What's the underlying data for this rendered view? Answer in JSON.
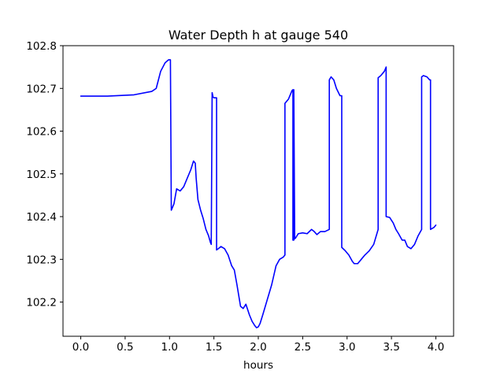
{
  "chart_data": {
    "type": "line",
    "title": "Water Depth h at gauge 540",
    "xlabel": "hours",
    "ylabel": "",
    "xlim": [
      -0.2,
      4.2
    ],
    "ylim": [
      102.12,
      102.8
    ],
    "grid": false,
    "legend": "none",
    "colors": {
      "line": "#0000ff",
      "axes": "#000000",
      "background": "#ffffff"
    },
    "xticks": [
      0.0,
      0.5,
      1.0,
      1.5,
      2.0,
      2.5,
      3.0,
      3.5,
      4.0
    ],
    "xtick_labels": [
      "0.0",
      "0.5",
      "1.0",
      "1.5",
      "2.0",
      "2.5",
      "3.0",
      "3.5",
      "4.0"
    ],
    "yticks": [
      102.2,
      102.3,
      102.4,
      102.5,
      102.6,
      102.7,
      102.8
    ],
    "ytick_labels": [
      "102.2",
      "102.3",
      "102.4",
      "102.5",
      "102.6",
      "102.7",
      "102.8"
    ],
    "series": [
      {
        "x": [
          0.0,
          0.3,
          0.6,
          0.8,
          0.85,
          0.9,
          0.95,
          0.99,
          1.01,
          1.02,
          1.05,
          1.08,
          1.12,
          1.16,
          1.2,
          1.24,
          1.27,
          1.29,
          1.3,
          1.32,
          1.35,
          1.38,
          1.41,
          1.44,
          1.46,
          1.47,
          1.48,
          1.49,
          1.5,
          1.5,
          1.51,
          1.53,
          1.53,
          1.55,
          1.58,
          1.62,
          1.66,
          1.7,
          1.73,
          1.76,
          1.8,
          1.83,
          1.86,
          1.9,
          1.93,
          1.96,
          1.98,
          2.0,
          2.02,
          2.05,
          2.1,
          2.15,
          2.2,
          2.24,
          2.28,
          2.3,
          2.3,
          2.34,
          2.37,
          2.38,
          2.39,
          2.39,
          2.4,
          2.4,
          2.41,
          2.42,
          2.45,
          2.5,
          2.55,
          2.6,
          2.63,
          2.66,
          2.7,
          2.75,
          2.8,
          2.8,
          2.82,
          2.85,
          2.88,
          2.92,
          2.94,
          2.94,
          2.98,
          3.02,
          3.06,
          3.08,
          3.12,
          3.16,
          3.2,
          3.25,
          3.3,
          3.35,
          3.35,
          3.38,
          3.42,
          3.44,
          3.44,
          3.48,
          3.52,
          3.55,
          3.58,
          3.62,
          3.65,
          3.68,
          3.72,
          3.76,
          3.8,
          3.84,
          3.84,
          3.86,
          3.9,
          3.93,
          3.94,
          3.94,
          3.98,
          4.0
        ],
        "y": [
          102.682,
          102.682,
          102.685,
          102.693,
          102.7,
          102.74,
          102.76,
          102.767,
          102.767,
          102.415,
          102.43,
          102.465,
          102.46,
          102.47,
          102.49,
          102.51,
          102.53,
          102.525,
          102.49,
          102.44,
          102.415,
          102.395,
          102.37,
          102.355,
          102.34,
          102.335,
          102.69,
          102.68,
          102.678,
          102.678,
          102.678,
          102.678,
          102.322,
          102.325,
          102.33,
          102.325,
          102.31,
          102.285,
          102.275,
          102.24,
          102.19,
          102.185,
          102.195,
          102.17,
          102.155,
          102.145,
          102.14,
          102.142,
          102.15,
          102.17,
          102.205,
          102.24,
          102.285,
          102.3,
          102.305,
          102.31,
          102.665,
          102.675,
          102.69,
          102.695,
          102.697,
          102.345,
          102.345,
          102.697,
          102.348,
          102.35,
          102.36,
          102.362,
          102.36,
          102.37,
          102.365,
          102.358,
          102.365,
          102.365,
          102.37,
          102.72,
          102.727,
          102.72,
          102.7,
          102.683,
          102.683,
          102.328,
          102.32,
          102.31,
          102.295,
          102.29,
          102.29,
          102.3,
          102.31,
          102.32,
          102.335,
          102.37,
          102.725,
          102.73,
          102.74,
          102.75,
          102.4,
          102.398,
          102.385,
          102.37,
          102.36,
          102.345,
          102.345,
          102.33,
          102.325,
          102.335,
          102.355,
          102.37,
          102.727,
          102.73,
          102.727,
          102.72,
          102.72,
          102.37,
          102.375,
          102.38
        ]
      }
    ]
  }
}
